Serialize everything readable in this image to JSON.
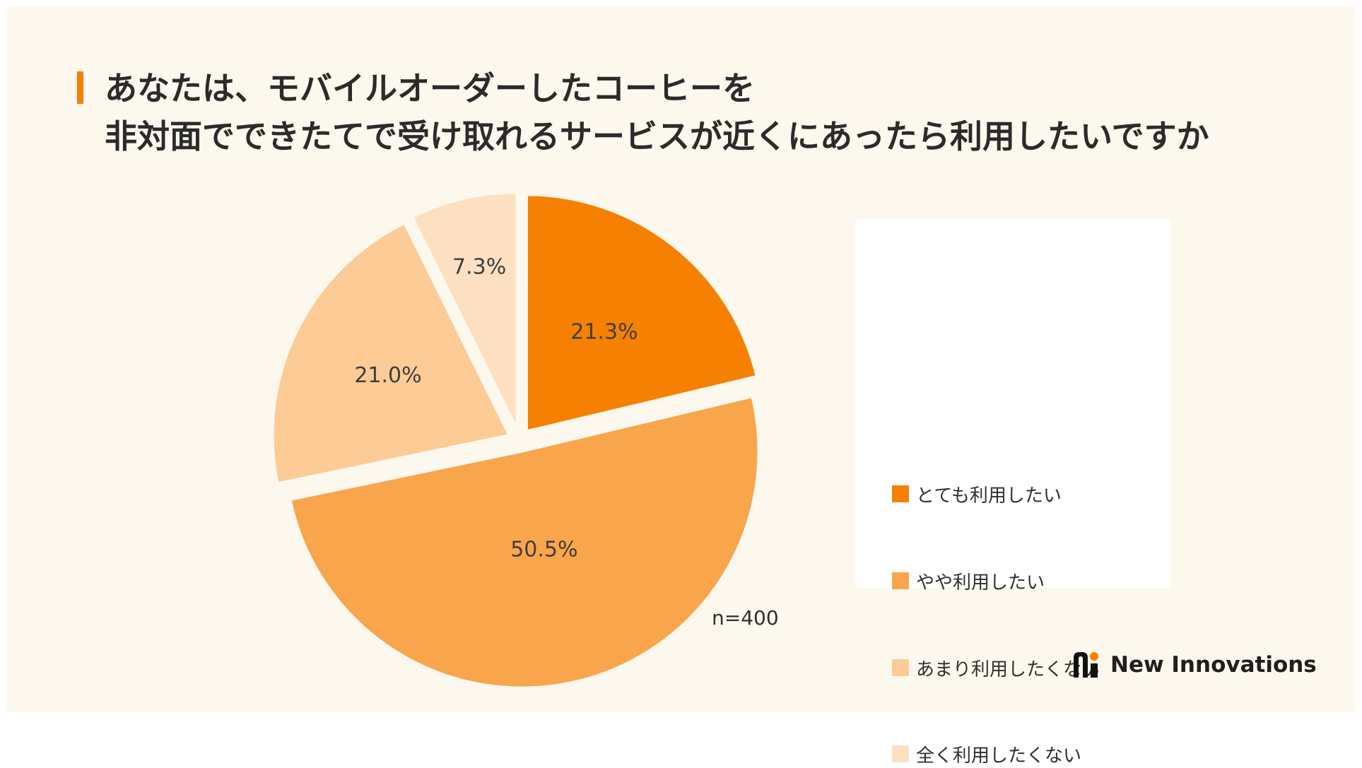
{
  "colors": {
    "background": "#fdf8ee",
    "accent": "#f58002",
    "legend_panel": "#ffffff",
    "text": "#2b2b2b",
    "slice_border": "#fdf8ee"
  },
  "header": {
    "title_line1": "あなたは、モバイルオーダーしたコーヒーを",
    "title_line2": "非対面でできたてで受け取れるサービスが近くにあったら利用したいですか"
  },
  "chart_data": {
    "type": "pie",
    "title": "あなたは、モバイルオーダーしたコーヒーを非対面でできたてで受け取れるサービスが近くにあったら利用したいですか",
    "unit": "%",
    "categories": [
      "とても利用したい",
      "やや利用したい",
      "あまり利用したくない",
      "全く利用したくない"
    ],
    "values": [
      21.3,
      50.5,
      21.0,
      7.3
    ],
    "value_labels": [
      "21.3%",
      "50.5%",
      "21.0%",
      "7.3%"
    ],
    "colors": [
      "#f58002",
      "#f9a54c",
      "#fccb96",
      "#fde0c1"
    ],
    "exploded": true,
    "legend_position": "right",
    "sample_size": "n=400"
  },
  "legend": {
    "items": [
      {
        "label": "とても利用したい",
        "color": "#f58002"
      },
      {
        "label": "やや利用したい",
        "color": "#f9a54c"
      },
      {
        "label": "あまり利用したくない",
        "color": "#fccb96"
      },
      {
        "label": "全く利用したくない",
        "color": "#fde0c1"
      }
    ]
  },
  "sample_size": "n=400",
  "brand": {
    "name": "New Innovations",
    "logo_icon": "ni-logo-icon"
  }
}
